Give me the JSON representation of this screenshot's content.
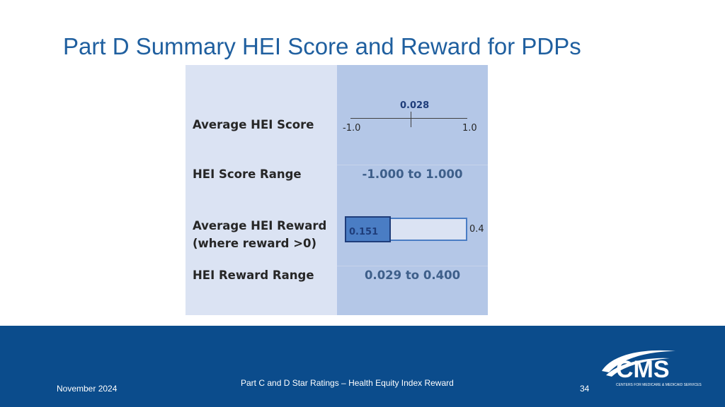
{
  "slide": {
    "title": "Part D Summary HEI Score and Reward for PDPs"
  },
  "table": {
    "rows": [
      {
        "label": "Average HEI Score"
      },
      {
        "label": "HEI Score Range",
        "value": "-1.000 to 1.000"
      },
      {
        "label_line1": "Average HEI Reward",
        "label_line2": "(where reward >0)"
      },
      {
        "label": "HEI Reward Range",
        "value": "0.029 to 0.400"
      }
    ],
    "score_scale": {
      "value": "0.028",
      "min_label": "-1.0",
      "max_label": "1.0",
      "min": -1.0,
      "max": 1.0,
      "marker": 0.028
    },
    "reward_bar": {
      "value_label": "0.151",
      "max_label": "0.4",
      "value": 0.151,
      "max": 0.4
    }
  },
  "footer": {
    "date": "November 2024",
    "subtitle": "Part C and D Star Ratings – Health Equity Index Reward",
    "page_number": "34",
    "logo_text": "CMS",
    "logo_subtext": "CENTERS FOR MEDICARE & MEDICAID SERVICES"
  },
  "colors": {
    "title": "#1f5f9f",
    "footer_bg": "#0b4c8c",
    "left_column": "#dbe3f3",
    "right_column": "#b4c7e7",
    "bar_fill": "#4a7dc4"
  },
  "icons": {
    "logo": "cms-logo"
  }
}
